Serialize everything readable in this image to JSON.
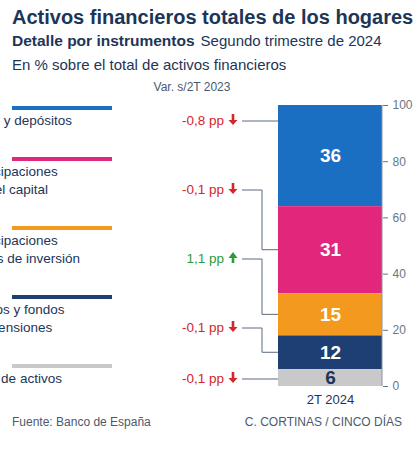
{
  "chart_data": {
    "type": "bar",
    "stacked": true,
    "data_labels": true,
    "title": "Activos financieros totales de los hogares",
    "subtitle": "Detalle por instrumentos",
    "period": "Segundo trimestre de 2024",
    "note": "En % sobre el total de activos financieros",
    "change_header": "Var. s/2T 2023",
    "categories": [
      "2T 2024"
    ],
    "series": [
      {
        "name": "Efectivo y depósitos",
        "color": "#1b6fc2",
        "values": [
          36
        ],
        "change": -0.8,
        "change_label": "-0,8 pp"
      },
      {
        "name": "Participaciones\nen el capital",
        "color": "#e2267c",
        "values": [
          31
        ],
        "change": -0.1,
        "change_label": "-0,1 pp"
      },
      {
        "name": "Participaciones\nen fondos de inversión",
        "color": "#f39a1e",
        "values": [
          15
        ],
        "change": 1.1,
        "change_label": "1,1 pp"
      },
      {
        "name": "Seguros y fondos\nde pensiones",
        "color": "#1e3f73",
        "values": [
          12
        ],
        "change": -0.1,
        "change_label": "-0,1 pp"
      },
      {
        "name": "Resto de activos",
        "color": "#c9c9c9",
        "values": [
          6
        ],
        "change": -0.1,
        "change_label": "-0,1 pp"
      }
    ],
    "ylim": [
      0,
      100
    ],
    "yticks": [
      0,
      20,
      40,
      60,
      80,
      100
    ],
    "source": "Fuente: Banco de España",
    "credit": "C. CORTINAS / CINCO DÍAS"
  }
}
